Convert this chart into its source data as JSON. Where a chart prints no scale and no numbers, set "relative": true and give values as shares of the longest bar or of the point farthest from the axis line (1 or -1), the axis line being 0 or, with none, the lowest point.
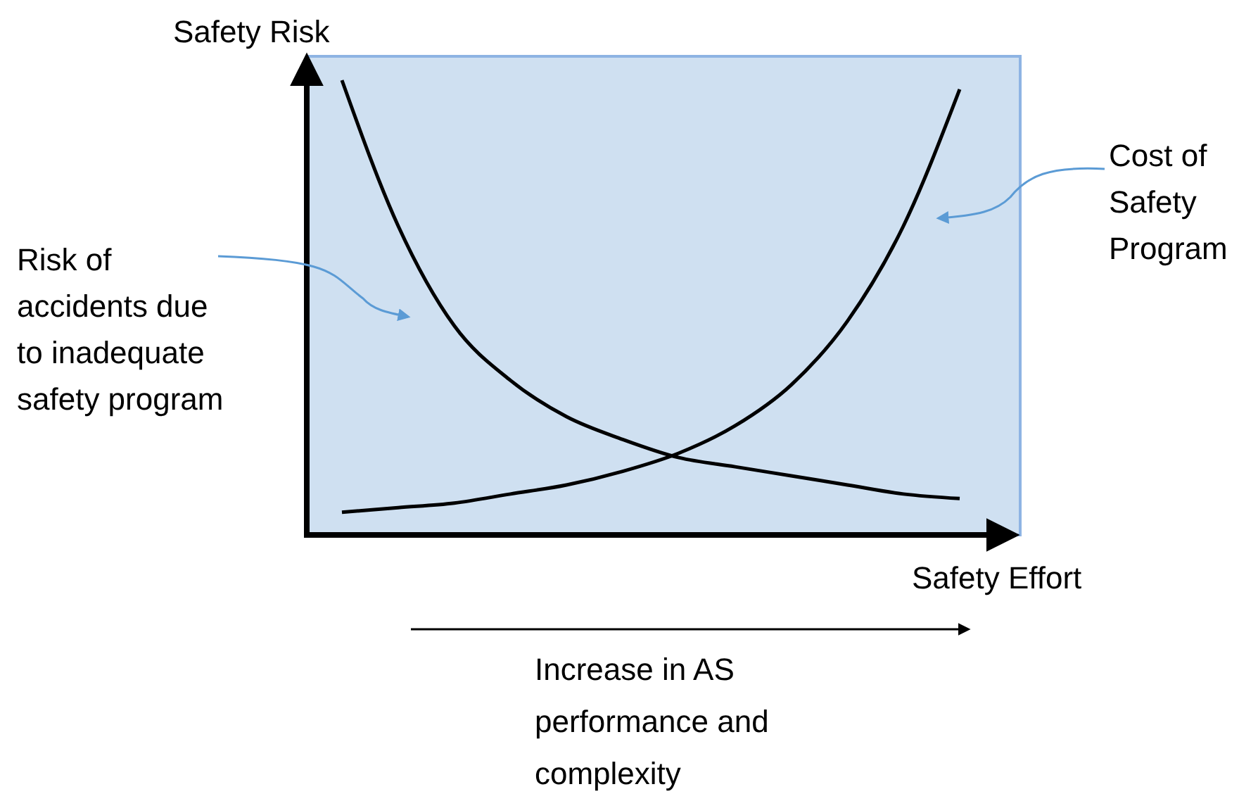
{
  "chart_data": {
    "type": "line",
    "relative": true,
    "xlabel": "Safety Effort",
    "ylabel": "Safety Risk",
    "categories": [
      null,
      null,
      null,
      null,
      null,
      null,
      null,
      null,
      null,
      null,
      null,
      null
    ],
    "series": [
      {
        "name": "Risk of accidents due to inadequate safety program",
        "color": "#000000",
        "values": [
          1,
          0.68,
          0.46,
          0.34,
          0.26,
          0.21,
          0.17,
          0.15,
          0.13,
          0.11,
          0.09,
          0.08
        ]
      },
      {
        "name": "Cost of Safety Program",
        "color": "#000000",
        "values": [
          0.05,
          0.06,
          0.07,
          0.09,
          0.11,
          0.14,
          0.18,
          0.24,
          0.33,
          0.47,
          0.68,
          0.98
        ]
      }
    ],
    "annotations": [
      "Increase in AS performance and complexity"
    ],
    "marker": "none",
    "line_style": "solid"
  }
}
